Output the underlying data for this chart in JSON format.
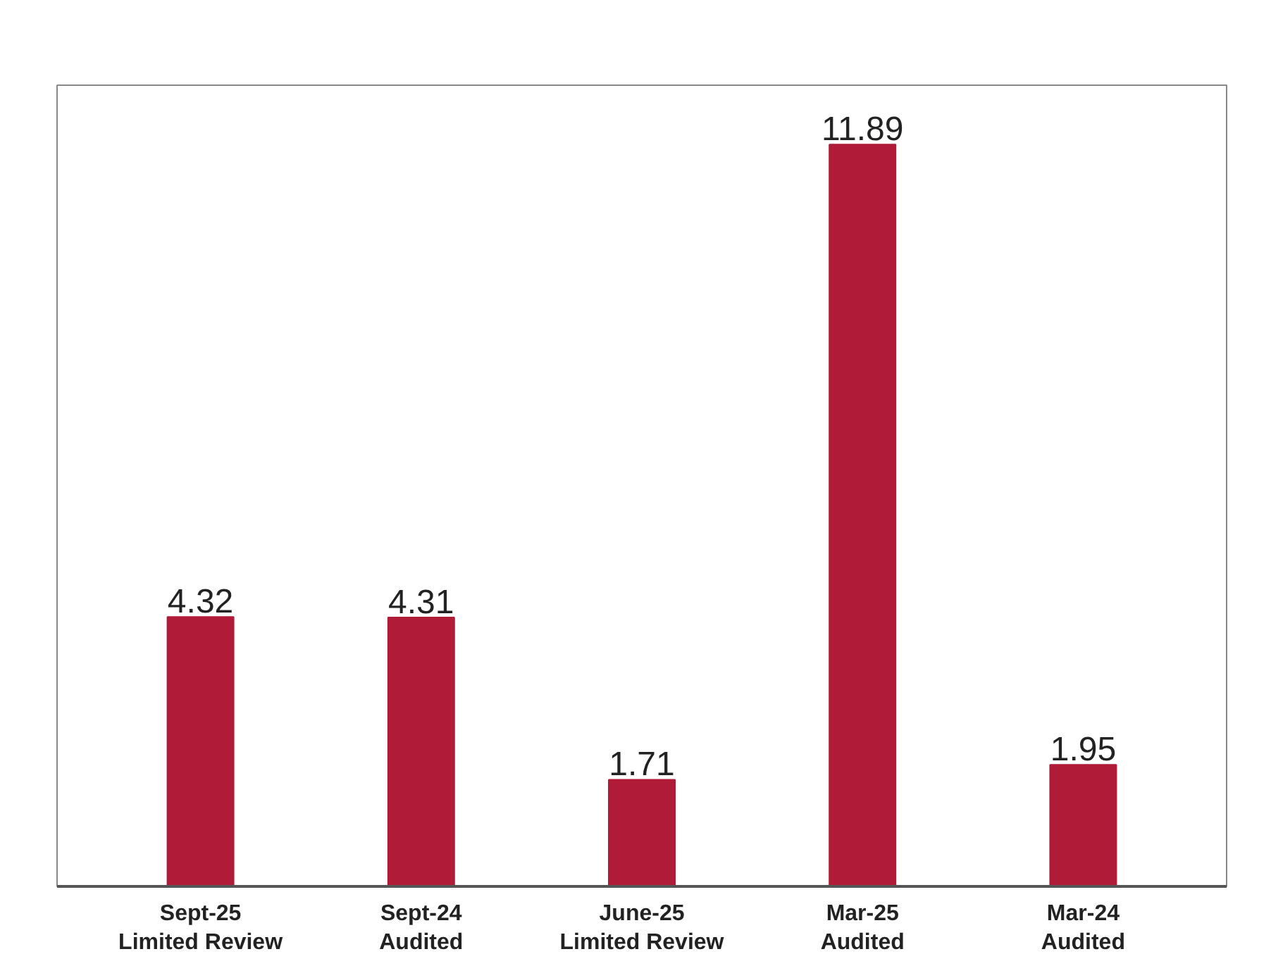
{
  "chart_data": {
    "type": "bar",
    "categories": [
      "Sept-25\nLimited Review",
      "Sept-24\nAudited",
      "June-25\nLimited Review",
      "Mar-25\nAudited",
      "Mar-24\nAudited"
    ],
    "values": [
      4.32,
      4.31,
      1.71,
      11.89,
      1.95
    ],
    "color": "#b01b37",
    "data_labels": true,
    "grid": false
  }
}
